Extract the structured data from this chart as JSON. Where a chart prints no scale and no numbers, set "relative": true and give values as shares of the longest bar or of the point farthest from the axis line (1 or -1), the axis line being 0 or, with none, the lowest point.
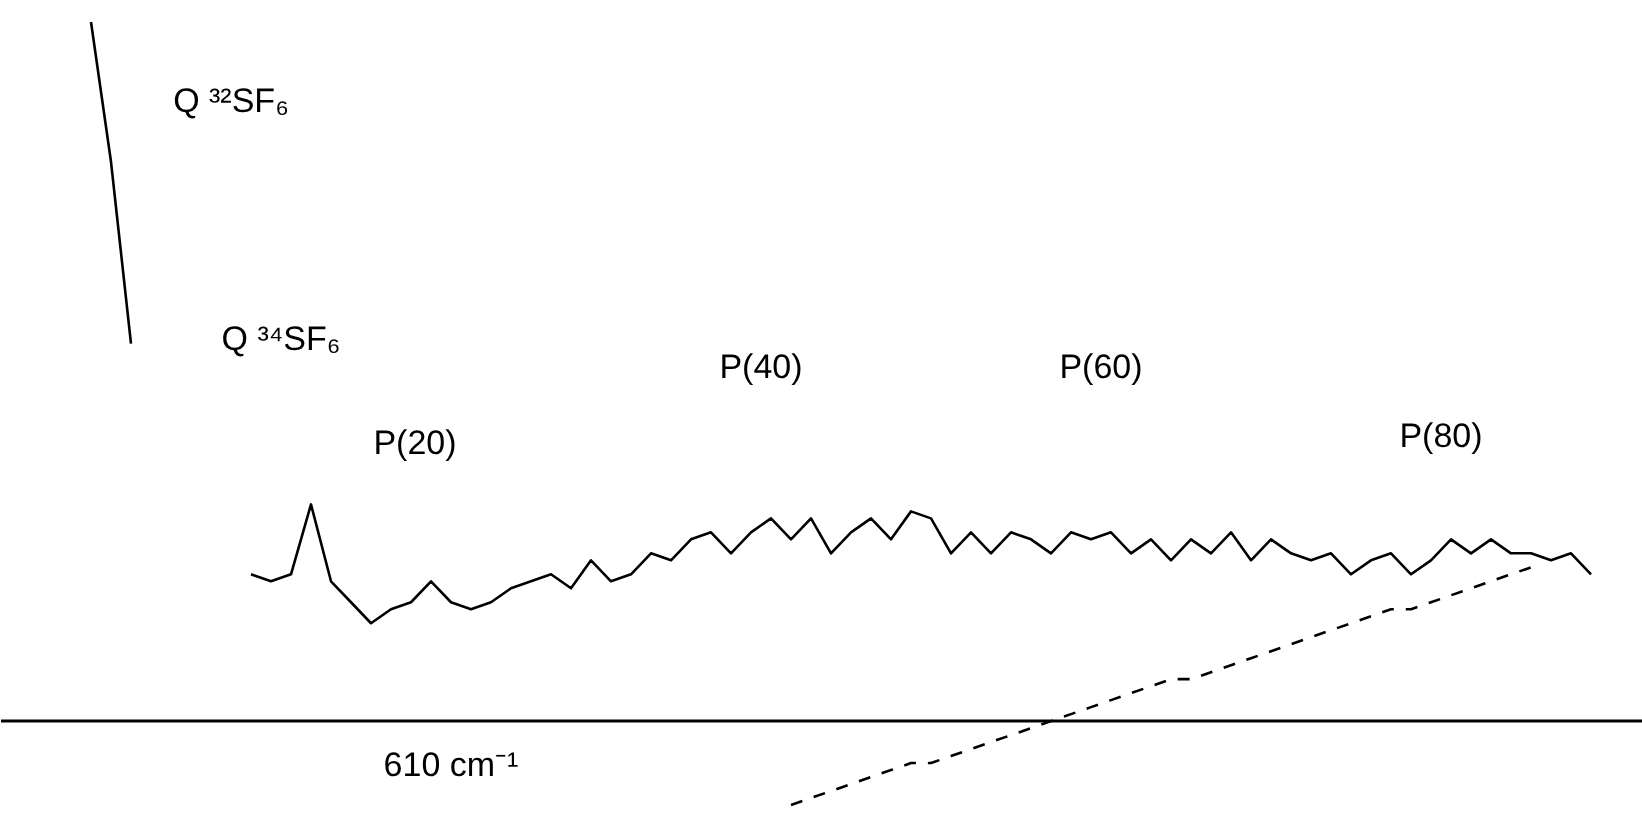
{
  "chart_data": {
    "type": "line",
    "relative": true,
    "categories": [
      null,
      null,
      null,
      null,
      null,
      null,
      null,
      null,
      null,
      null,
      null,
      null,
      null,
      null,
      null,
      null,
      null,
      null,
      null,
      null,
      null,
      null,
      null,
      null,
      null,
      null,
      null,
      null,
      null,
      null,
      null,
      null,
      null,
      null,
      null,
      null,
      null,
      null,
      null,
      null,
      null,
      null,
      null,
      null,
      null,
      null,
      null,
      null,
      null,
      null,
      null,
      null,
      null,
      null,
      null,
      null,
      null,
      null,
      null,
      null,
      null,
      null,
      null,
      null,
      null,
      null,
      null,
      null,
      null,
      null,
      null,
      null,
      null,
      null,
      null,
      null,
      null,
      null,
      null,
      null
    ],
    "series": [
      {
        "color": "#000000",
        "line_style": "solid",
        "values": [
          null,
          null,
          null,
          null,
          1.0,
          0.8,
          0.54,
          null,
          null,
          null,
          null,
          null,
          0.21,
          0.2,
          0.21,
          0.31,
          0.2,
          0.17,
          0.14,
          0.16,
          0.17,
          0.2,
          0.17,
          0.16,
          0.17,
          0.19,
          0.2,
          0.21,
          0.19,
          0.23,
          0.2,
          0.21,
          0.24,
          0.23,
          0.26,
          0.27,
          0.24,
          0.27,
          0.29,
          0.26,
          0.29,
          0.24,
          0.27,
          0.29,
          0.26,
          0.3,
          0.29,
          0.24,
          0.27,
          0.24,
          0.27,
          0.26,
          0.24,
          0.27,
          0.26,
          0.27,
          0.24,
          0.26,
          0.23,
          0.26,
          0.24,
          0.27,
          0.23,
          0.26,
          0.24,
          0.23,
          0.24,
          0.21,
          0.23,
          0.24,
          0.21,
          0.23,
          0.26,
          0.24,
          0.26,
          0.24,
          0.24,
          0.23,
          0.24,
          0.21
        ]
      },
      {
        "color": "#000000",
        "line_style": "dashed",
        "values": [
          null,
          null,
          null,
          null,
          null,
          null,
          null,
          null,
          null,
          null,
          null,
          null,
          null,
          null,
          null,
          null,
          null,
          null,
          null,
          null,
          null,
          null,
          null,
          null,
          null,
          null,
          null,
          null,
          null,
          null,
          null,
          null,
          null,
          null,
          null,
          null,
          null,
          null,
          null,
          -0.12,
          -0.11,
          -0.1,
          -0.09,
          -0.08,
          -0.07,
          -0.06,
          -0.06,
          -0.05,
          -0.04,
          -0.03,
          -0.02,
          -0.01,
          0.0,
          0.01,
          0.02,
          0.03,
          0.04,
          0.05,
          0.06,
          0.06,
          0.07,
          0.08,
          0.09,
          0.1,
          0.11,
          0.12,
          0.13,
          0.14,
          0.15,
          0.16,
          0.16,
          0.17,
          0.18,
          0.19,
          0.2,
          0.21,
          0.22,
          null,
          null,
          null
        ]
      }
    ],
    "annotations": [
      "Q ³²SF₆",
      "Q ³⁴SF₆",
      "P(20)",
      "P(40)",
      "P(60)",
      "P(80)",
      "610 cm⁻¹"
    ],
    "grid": false,
    "marker": "none"
  }
}
